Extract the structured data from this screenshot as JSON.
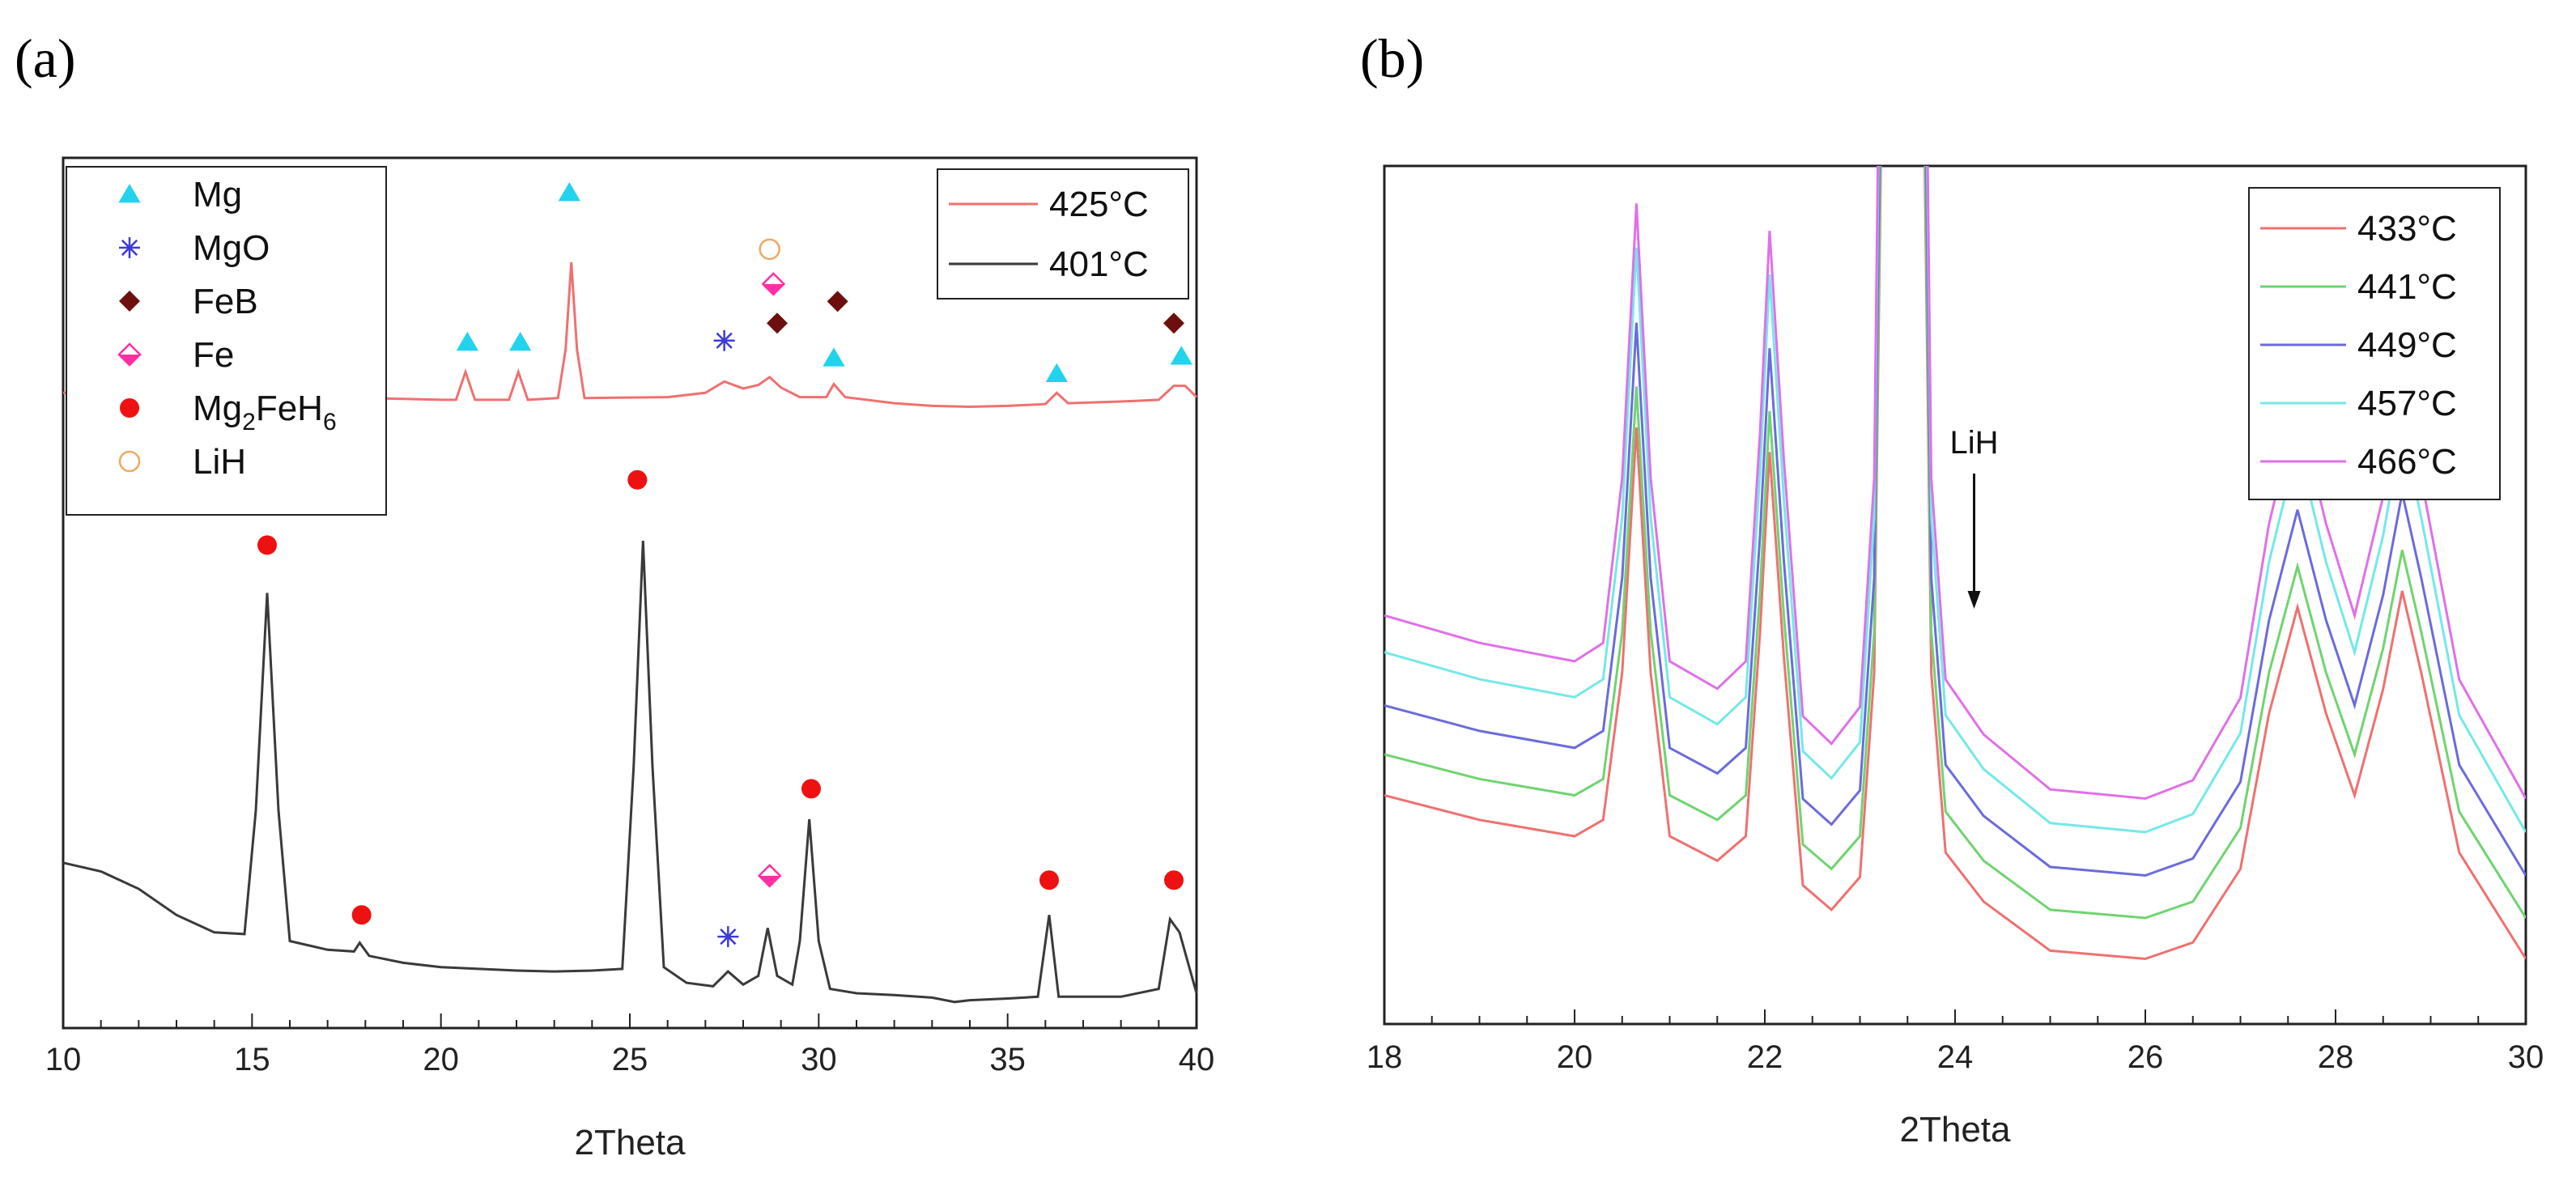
{
  "chart_data": [
    {
      "panel": "(a)",
      "type": "line",
      "xlabel": "2Theta",
      "ylabel": "",
      "xlim": [
        10,
        40
      ],
      "xticks": [
        10,
        15,
        20,
        25,
        30,
        35,
        40
      ],
      "y_ticks_labeled": false,
      "series": [
        {
          "name": "425°C",
          "color": "#f07070",
          "points": [
            [
              10,
              0.73
            ],
            [
              12,
              0.73
            ],
            [
              14,
              0.728
            ],
            [
              16,
              0.726
            ],
            [
              18,
              0.724
            ],
            [
              20,
              0.722
            ],
            [
              20.4,
              0.722
            ],
            [
              20.65,
              0.754
            ],
            [
              20.9,
              0.722
            ],
            [
              21.8,
              0.722
            ],
            [
              22.05,
              0.754
            ],
            [
              22.3,
              0.722
            ],
            [
              23.1,
              0.724
            ],
            [
              23.3,
              0.78
            ],
            [
              23.45,
              0.88
            ],
            [
              23.6,
              0.78
            ],
            [
              23.8,
              0.724
            ],
            [
              26,
              0.725
            ],
            [
              27,
              0.73
            ],
            [
              27.5,
              0.743
            ],
            [
              28,
              0.735
            ],
            [
              28.4,
              0.739
            ],
            [
              28.7,
              0.748
            ],
            [
              29,
              0.736
            ],
            [
              29.5,
              0.725
            ],
            [
              30.2,
              0.725
            ],
            [
              30.4,
              0.74
            ],
            [
              30.7,
              0.725
            ],
            [
              32,
              0.718
            ],
            [
              33,
              0.715
            ],
            [
              34,
              0.714
            ],
            [
              35,
              0.715
            ],
            [
              36,
              0.717
            ],
            [
              36.3,
              0.73
            ],
            [
              36.6,
              0.718
            ],
            [
              38,
              0.72
            ],
            [
              39,
              0.722
            ],
            [
              39.4,
              0.738
            ],
            [
              39.7,
              0.738
            ],
            [
              40,
              0.725
            ]
          ]
        },
        {
          "name": "401°C",
          "color": "#3a3a3a",
          "points": [
            [
              10,
              0.19
            ],
            [
              11,
              0.18
            ],
            [
              12,
              0.16
            ],
            [
              13,
              0.13
            ],
            [
              14,
              0.11
            ],
            [
              14.8,
              0.108
            ],
            [
              15.1,
              0.25
            ],
            [
              15.4,
              0.5
            ],
            [
              15.7,
              0.25
            ],
            [
              16,
              0.1
            ],
            [
              17,
              0.09
            ],
            [
              17.7,
              0.088
            ],
            [
              17.85,
              0.098
            ],
            [
              18.1,
              0.083
            ],
            [
              19,
              0.075
            ],
            [
              20,
              0.07
            ],
            [
              21,
              0.068
            ],
            [
              22,
              0.066
            ],
            [
              23,
              0.065
            ],
            [
              24,
              0.066
            ],
            [
              24.8,
              0.068
            ],
            [
              25.1,
              0.3
            ],
            [
              25.35,
              0.56
            ],
            [
              25.6,
              0.3
            ],
            [
              25.9,
              0.07
            ],
            [
              26.5,
              0.052
            ],
            [
              27.2,
              0.048
            ],
            [
              27.6,
              0.065
            ],
            [
              28,
              0.05
            ],
            [
              28.4,
              0.06
            ],
            [
              28.65,
              0.115
            ],
            [
              28.9,
              0.06
            ],
            [
              29.3,
              0.05
            ],
            [
              29.5,
              0.1
            ],
            [
              29.75,
              0.24
            ],
            [
              30,
              0.1
            ],
            [
              30.3,
              0.045
            ],
            [
              31,
              0.04
            ],
            [
              32,
              0.038
            ],
            [
              33,
              0.035
            ],
            [
              33.6,
              0.03
            ],
            [
              34,
              0.032
            ],
            [
              35,
              0.034
            ],
            [
              35.8,
              0.036
            ],
            [
              36.1,
              0.13
            ],
            [
              36.35,
              0.036
            ],
            [
              37,
              0.036
            ],
            [
              38,
              0.036
            ],
            [
              39,
              0.045
            ],
            [
              39.3,
              0.125
            ],
            [
              39.55,
              0.11
            ],
            [
              40,
              0.04
            ]
          ]
        }
      ],
      "markers": [
        {
          "shape": "triangle",
          "x": 20.7,
          "y": 0.788
        },
        {
          "shape": "triangle",
          "x": 22.1,
          "y": 0.788
        },
        {
          "shape": "triangle",
          "x": 23.4,
          "y": 0.96
        },
        {
          "shape": "triangle",
          "x": 30.4,
          "y": 0.77
        },
        {
          "shape": "triangle",
          "x": 36.3,
          "y": 0.752
        },
        {
          "shape": "triangle",
          "x": 39.6,
          "y": 0.772
        },
        {
          "shape": "star",
          "x": 27.5,
          "y": 0.79
        },
        {
          "shape": "star",
          "x": 27.6,
          "y": 0.105
        },
        {
          "shape": "diamond",
          "x": 28.9,
          "y": 0.81
        },
        {
          "shape": "diamond",
          "x": 30.5,
          "y": 0.835
        },
        {
          "shape": "diamond",
          "x": 39.4,
          "y": 0.81
        },
        {
          "shape": "halfdiamond",
          "x": 28.8,
          "y": 0.855
        },
        {
          "shape": "halfdiamond",
          "x": 28.7,
          "y": 0.175
        },
        {
          "shape": "circle",
          "x": 15.4,
          "y": 0.555
        },
        {
          "shape": "circle",
          "x": 17.9,
          "y": 0.13
        },
        {
          "shape": "circle",
          "x": 25.2,
          "y": 0.63
        },
        {
          "shape": "circle",
          "x": 29.8,
          "y": 0.275
        },
        {
          "shape": "circle",
          "x": 36.1,
          "y": 0.17
        },
        {
          "shape": "circle",
          "x": 39.4,
          "y": 0.17
        },
        {
          "shape": "opencircle",
          "x": 28.7,
          "y": 0.895
        }
      ],
      "symbol_legend": [
        {
          "shape": "triangle",
          "label": "Mg",
          "color": "#22d3ee"
        },
        {
          "shape": "star",
          "label": "MgO",
          "color": "#3b3bd6"
        },
        {
          "shape": "diamond",
          "label": "FeB",
          "color": "#6e0f0f"
        },
        {
          "shape": "halfdiamond",
          "label": "Fe",
          "color": "#ff2fa3"
        },
        {
          "shape": "circle",
          "label_main": "Mg",
          "sub1": "2",
          "label_mid": "FeH",
          "sub2": "6",
          "color": "#ee1111"
        },
        {
          "shape": "opencircle",
          "label": "LiH",
          "color": "#f0a860"
        }
      ],
      "line_legend": [
        "425°C",
        "401°C"
      ]
    },
    {
      "panel": "(b)",
      "type": "line",
      "xlabel": "2Theta",
      "ylabel": "",
      "xlim": [
        18,
        30
      ],
      "xticks": [
        18,
        20,
        22,
        24,
        26,
        28,
        30
      ],
      "y_ticks_labeled": false,
      "annotation": {
        "text": "LiH",
        "x": 24.2
      },
      "series": [
        {
          "name": "433°C",
          "color": "#f07070",
          "offset": 0.0
        },
        {
          "name": "441°C",
          "color": "#6fd46f",
          "offset": 0.05
        },
        {
          "name": "449°C",
          "color": "#6b6bdc",
          "offset": 0.1
        },
        {
          "name": "457°C",
          "color": "#74e8e8",
          "offset": 0.15
        },
        {
          "name": "466°C",
          "color": "#e070e8",
          "offset": 0.19
        }
      ],
      "base_profile": [
        [
          18,
          0.25
        ],
        [
          19,
          0.22
        ],
        [
          20,
          0.2
        ],
        [
          20.3,
          0.22
        ],
        [
          20.5,
          0.4
        ],
        [
          20.65,
          0.7
        ],
        [
          20.8,
          0.4
        ],
        [
          21.0,
          0.2
        ],
        [
          21.5,
          0.17
        ],
        [
          21.8,
          0.2
        ],
        [
          21.95,
          0.45
        ],
        [
          22.05,
          0.67
        ],
        [
          22.2,
          0.42
        ],
        [
          22.4,
          0.14
        ],
        [
          22.7,
          0.11
        ],
        [
          23.0,
          0.15
        ],
        [
          23.15,
          0.4
        ],
        [
          23.25,
          1.3
        ],
        [
          23.65,
          1.3
        ],
        [
          23.75,
          0.4
        ],
        [
          23.9,
          0.18
        ],
        [
          24.3,
          0.12
        ],
        [
          25,
          0.06
        ],
        [
          26,
          0.05
        ],
        [
          26.5,
          0.07
        ],
        [
          27.0,
          0.16
        ],
        [
          27.3,
          0.35
        ],
        [
          27.6,
          0.48
        ],
        [
          27.9,
          0.35
        ],
        [
          28.2,
          0.25
        ],
        [
          28.5,
          0.38
        ],
        [
          28.7,
          0.5
        ],
        [
          28.9,
          0.4
        ],
        [
          29.3,
          0.18
        ],
        [
          30,
          0.05
        ]
      ],
      "base_scale": [
        1.0,
        1.0,
        1.04,
        1.1,
        1.12
      ]
    }
  ],
  "labels": {
    "panel_a": "(a)",
    "panel_b": "(b)"
  }
}
